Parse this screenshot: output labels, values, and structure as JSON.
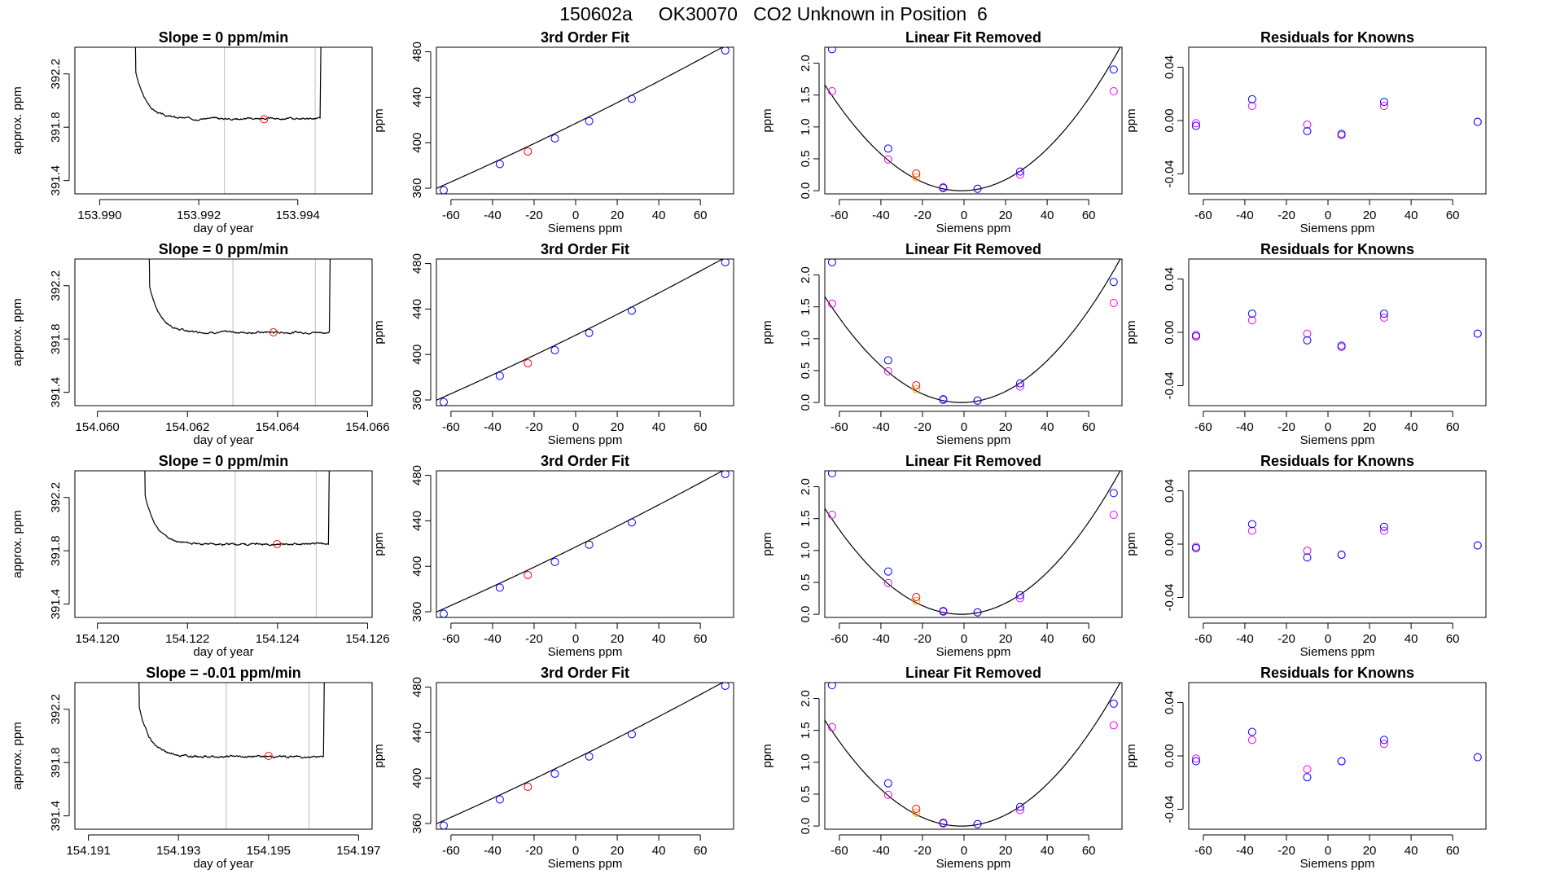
{
  "title": "150602a     OK30070   CO2 Unknown in Position  6",
  "colors": {
    "axis": "#000000",
    "trace": "#000000",
    "vline": "#bebebe",
    "marker": "#ff0000",
    "known": "#0000ff",
    "known_alt": "#ee00ee",
    "unknown_alt": "#ffa500",
    "curve": "#000000"
  },
  "chart_data": [
    {
      "type": "line",
      "title": "Slope =  0  ppm/min",
      "xlabel": "day of year",
      "ylabel": "approx. ppm",
      "xlim": [
        153.9895,
        153.9955
      ],
      "ylim": [
        391.3,
        392.4
      ],
      "xticks": [
        153.99,
        153.992,
        153.994
      ],
      "xtick_labels": [
        "153.990",
        "153.992",
        "153.994"
      ],
      "yticks": [
        391.4,
        391.8,
        392.2
      ],
      "ytick_labels": [
        "391.4",
        "391.8",
        "392.2"
      ],
      "vlines": [
        153.99252,
        153.99435
      ],
      "marker": {
        "x": 153.99332,
        "y": 391.86
      },
      "trace": {
        "start": 153.99072,
        "end": 153.99445,
        "plateau": 391.865,
        "top": 392.5,
        "amp": 0.36,
        "decay": 0.00022,
        "noise": 0.008,
        "seed": 3
      }
    },
    {
      "type": "line",
      "title": "Slope =  0  ppm/min",
      "xlabel": "day of year",
      "ylabel": "approx. ppm",
      "xlim": [
        154.0595,
        154.0661
      ],
      "ylim": [
        391.3,
        392.4
      ],
      "xticks": [
        154.06,
        154.062,
        154.064,
        154.066
      ],
      "xtick_labels": [
        "154.060",
        "154.062",
        "154.064",
        "154.066"
      ],
      "yticks": [
        391.4,
        391.8,
        392.2
      ],
      "ytick_labels": [
        "391.4",
        "391.8",
        "392.2"
      ],
      "vlines": [
        154.06301,
        154.06484
      ],
      "marker": {
        "x": 154.06391,
        "y": 391.85
      },
      "trace": {
        "start": 154.06115,
        "end": 154.06515,
        "plateau": 391.85,
        "top": 392.5,
        "amp": 0.36,
        "decay": 0.00024,
        "noise": 0.008,
        "seed": 7
      }
    },
    {
      "type": "line",
      "title": "Slope =  0  ppm/min",
      "xlabel": "day of year",
      "ylabel": "approx. ppm",
      "xlim": [
        154.1195,
        154.1261
      ],
      "ylim": [
        391.3,
        392.4
      ],
      "xticks": [
        154.12,
        154.122,
        154.124,
        154.126
      ],
      "xtick_labels": [
        "154.120",
        "154.122",
        "154.124",
        "154.126"
      ],
      "yticks": [
        391.4,
        391.8,
        392.2
      ],
      "ytick_labels": [
        "391.4",
        "391.8",
        "392.2"
      ],
      "vlines": [
        154.12306,
        154.12486
      ],
      "marker": {
        "x": 154.12399,
        "y": 391.85
      },
      "trace": {
        "start": 154.12105,
        "end": 154.12513,
        "plateau": 391.85,
        "top": 392.5,
        "amp": 0.38,
        "decay": 0.00025,
        "noise": 0.008,
        "seed": 11
      }
    },
    {
      "type": "line",
      "title": "Slope =  -0.01  ppm/min",
      "xlabel": "day of year",
      "ylabel": "approx. ppm",
      "xlim": [
        154.1907,
        154.1973
      ],
      "ylim": [
        391.3,
        392.4
      ],
      "xticks": [
        154.191,
        154.193,
        154.195,
        154.197
      ],
      "xtick_labels": [
        "154.191",
        "154.193",
        "154.195",
        "154.197"
      ],
      "yticks": [
        391.4,
        391.8,
        392.2
      ],
      "ytick_labels": [
        "391.4",
        "391.8",
        "392.2"
      ],
      "vlines": [
        154.19406,
        154.1959
      ],
      "marker": {
        "x": 154.195,
        "y": 391.85
      },
      "trace": {
        "start": 154.19212,
        "end": 154.19622,
        "plateau": 391.845,
        "top": 392.5,
        "amp": 0.38,
        "decay": 0.00025,
        "noise": 0.009,
        "seed": 19
      }
    },
    {
      "type": "scatter",
      "title": "3rd Order Fit",
      "xlabel": "Siemens ppm",
      "ylabel": "ppm",
      "xlim": [
        -67,
        76
      ],
      "ylim": [
        355,
        484
      ],
      "xticks": [
        -60,
        -40,
        -20,
        0,
        20,
        40,
        60
      ],
      "yticks": [
        360,
        400,
        440,
        480
      ],
      "knowns": {
        "x": [
          -63.5,
          -36.5,
          -10,
          6.5,
          27,
          72
        ],
        "y": [
          358.2,
          381.2,
          403.8,
          419.0,
          438.6,
          481.2
        ]
      },
      "unknown": {
        "x": [
          -23
        ],
        "y": [
          392.3
        ]
      },
      "fit": {
        "coef": [
          417.0,
          0.9,
          0.00069,
          0
        ]
      }
    },
    {
      "type": "scatter",
      "title": "3rd Order Fit",
      "xlabel": "Siemens ppm",
      "ylabel": "ppm",
      "xlim": [
        -67,
        76
      ],
      "ylim": [
        355,
        484
      ],
      "xticks": [
        -60,
        -40,
        -20,
        0,
        20,
        40,
        60
      ],
      "yticks": [
        360,
        400,
        440,
        480
      ],
      "knowns": {
        "x": [
          -63.5,
          -36.5,
          -10,
          6.5,
          27,
          72
        ],
        "y": [
          358.2,
          381.2,
          403.8,
          419.0,
          438.6,
          481.2
        ]
      },
      "unknown": {
        "x": [
          -23
        ],
        "y": [
          392.3
        ]
      },
      "fit": {
        "coef": [
          417.0,
          0.9,
          0.00069,
          0
        ]
      }
    },
    {
      "type": "scatter",
      "title": "3rd Order Fit",
      "xlabel": "Siemens ppm",
      "ylabel": "ppm",
      "xlim": [
        -67,
        76
      ],
      "ylim": [
        355,
        484
      ],
      "xticks": [
        -60,
        -40,
        -20,
        0,
        20,
        40,
        60
      ],
      "yticks": [
        360,
        400,
        440,
        480
      ],
      "knowns": {
        "x": [
          -63.5,
          -36.5,
          -10,
          6.5,
          27,
          72
        ],
        "y": [
          358.2,
          381.2,
          403.8,
          419.0,
          438.6,
          481.2
        ]
      },
      "unknown": {
        "x": [
          -23
        ],
        "y": [
          392.3
        ]
      },
      "fit": {
        "coef": [
          417.0,
          0.9,
          0.00069,
          0
        ]
      }
    },
    {
      "type": "scatter",
      "title": "3rd Order Fit",
      "xlabel": "Siemens ppm",
      "ylabel": "ppm",
      "xlim": [
        -67,
        76
      ],
      "ylim": [
        355,
        484
      ],
      "xticks": [
        -60,
        -40,
        -20,
        0,
        20,
        40,
        60
      ],
      "yticks": [
        360,
        400,
        440,
        480
      ],
      "knowns": {
        "x": [
          -63.5,
          -36.5,
          -10,
          6.5,
          27,
          72
        ],
        "y": [
          358.2,
          381.2,
          403.8,
          419.0,
          438.6,
          481.2
        ]
      },
      "unknown": {
        "x": [
          -23
        ],
        "y": [
          392.3
        ]
      },
      "fit": {
        "coef": [
          417.0,
          0.9,
          0.00069,
          0
        ]
      }
    },
    {
      "type": "scatter",
      "title": "Linear Fit Removed",
      "xlabel": "Siemens ppm",
      "ylabel": "ppm",
      "xlim": [
        -67,
        76
      ],
      "ylim": [
        -0.05,
        2.25
      ],
      "xticks": [
        -60,
        -40,
        -20,
        0,
        20,
        40,
        60
      ],
      "yticks": [
        0.0,
        0.5,
        1.0,
        1.5,
        2.0
      ],
      "ytick_labels": [
        "0.0",
        "0.5",
        "1.0",
        "1.5",
        "2.0"
      ],
      "knowns": {
        "x": [
          -63.5,
          -36.5,
          -10,
          6.5,
          27,
          72
        ],
        "y": [
          2.22,
          0.66,
          0.05,
          0.03,
          0.3,
          1.9
        ]
      },
      "knowns_alt": {
        "x": [
          -63.5,
          -36.5,
          -10,
          6.5,
          27,
          72
        ],
        "y": [
          1.56,
          0.49,
          0.04,
          0.03,
          0.25,
          1.56
        ]
      },
      "unknown": {
        "x": [
          -23
        ],
        "y": [
          0.27
        ]
      },
      "unknown_alt": {
        "x": [
          -23
        ],
        "y": [
          0.21
        ]
      },
      "fit": {
        "coef": [
          0.0,
          0.001,
          0.000385,
          0
        ]
      }
    },
    {
      "type": "scatter",
      "title": "Linear Fit Removed",
      "xlabel": "Siemens ppm",
      "ylabel": "ppm",
      "xlim": [
        -67,
        76
      ],
      "ylim": [
        -0.05,
        2.25
      ],
      "xticks": [
        -60,
        -40,
        -20,
        0,
        20,
        40,
        60
      ],
      "yticks": [
        0.0,
        0.5,
        1.0,
        1.5,
        2.0
      ],
      "ytick_labels": [
        "0.0",
        "0.5",
        "1.0",
        "1.5",
        "2.0"
      ],
      "knowns": {
        "x": [
          -63.5,
          -36.5,
          -10,
          6.5,
          27,
          72
        ],
        "y": [
          2.2,
          0.66,
          0.05,
          0.03,
          0.3,
          1.89
        ]
      },
      "knowns_alt": {
        "x": [
          -63.5,
          -36.5,
          -10,
          6.5,
          27,
          72
        ],
        "y": [
          1.55,
          0.49,
          0.04,
          0.03,
          0.25,
          1.56
        ]
      },
      "unknown": {
        "x": [
          -23
        ],
        "y": [
          0.27
        ]
      },
      "unknown_alt": {
        "x": [
          -23
        ],
        "y": [
          0.21
        ]
      },
      "fit": {
        "coef": [
          0.0,
          0.001,
          0.000385,
          0
        ]
      }
    },
    {
      "type": "scatter",
      "title": "Linear Fit Removed",
      "xlabel": "Siemens ppm",
      "ylabel": "ppm",
      "xlim": [
        -67,
        76
      ],
      "ylim": [
        -0.05,
        2.25
      ],
      "xticks": [
        -60,
        -40,
        -20,
        0,
        20,
        40,
        60
      ],
      "yticks": [
        0.0,
        0.5,
        1.0,
        1.5,
        2.0
      ],
      "ytick_labels": [
        "0.0",
        "0.5",
        "1.0",
        "1.5",
        "2.0"
      ],
      "knowns": {
        "x": [
          -63.5,
          -36.5,
          -10,
          6.5,
          27,
          72
        ],
        "y": [
          2.21,
          0.67,
          0.05,
          0.03,
          0.3,
          1.9
        ]
      },
      "knowns_alt": {
        "x": [
          -63.5,
          -36.5,
          -10,
          6.5,
          27,
          72
        ],
        "y": [
          1.56,
          0.49,
          0.04,
          0.03,
          0.25,
          1.56
        ]
      },
      "unknown": {
        "x": [
          -23
        ],
        "y": [
          0.27
        ]
      },
      "unknown_alt": {
        "x": [
          -23
        ],
        "y": [
          0.21
        ]
      },
      "fit": {
        "coef": [
          0.0,
          0.001,
          0.000385,
          0
        ]
      }
    },
    {
      "type": "scatter",
      "title": "Linear Fit Removed",
      "xlabel": "Siemens ppm",
      "ylabel": "ppm",
      "xlim": [
        -67,
        76
      ],
      "ylim": [
        -0.05,
        2.25
      ],
      "xticks": [
        -60,
        -40,
        -20,
        0,
        20,
        40,
        60
      ],
      "yticks": [
        0.0,
        0.5,
        1.0,
        1.5,
        2.0
      ],
      "ytick_labels": [
        "0.0",
        "0.5",
        "1.0",
        "1.5",
        "2.0"
      ],
      "knowns": {
        "x": [
          -63.5,
          -36.5,
          -10,
          6.5,
          27,
          72
        ],
        "y": [
          2.21,
          0.67,
          0.05,
          0.03,
          0.3,
          1.92
        ]
      },
      "knowns_alt": {
        "x": [
          -63.5,
          -36.5,
          -10,
          6.5,
          27,
          72
        ],
        "y": [
          1.55,
          0.49,
          0.04,
          0.03,
          0.25,
          1.58
        ]
      },
      "unknown": {
        "x": [
          -23
        ],
        "y": [
          0.27
        ]
      },
      "unknown_alt": {
        "x": [
          -23
        ],
        "y": [
          0.21
        ]
      },
      "fit": {
        "coef": [
          0.0,
          0.001,
          0.000385,
          0
        ]
      }
    },
    {
      "type": "scatter",
      "title": "Residuals for Knowns",
      "xlabel": "Siemens ppm",
      "ylabel": "ppm",
      "xlim": [
        -67,
        76
      ],
      "ylim": [
        -0.055,
        0.055
      ],
      "xticks": [
        -60,
        -40,
        -20,
        0,
        20,
        40,
        60
      ],
      "yticks": [
        -0.04,
        0.0,
        0.04
      ],
      "ytick_labels": [
        "-0.04",
        "0.00",
        "0.04"
      ],
      "knowns": {
        "x": [
          -63.5,
          -36.5,
          -10,
          6.5,
          27,
          72
        ],
        "y": [
          -0.004,
          0.016,
          -0.008,
          -0.01,
          0.014,
          -0.001
        ]
      },
      "knowns_alt": {
        "x": [
          -63.5,
          -36.5,
          -10,
          6.5,
          27,
          72
        ],
        "y": [
          -0.002,
          0.011,
          -0.003,
          -0.011,
          0.011,
          -0.001
        ]
      }
    },
    {
      "type": "scatter",
      "title": "Residuals for Knowns",
      "xlabel": "Siemens ppm",
      "ylabel": "ppm",
      "xlim": [
        -67,
        76
      ],
      "ylim": [
        -0.055,
        0.055
      ],
      "xticks": [
        -60,
        -40,
        -20,
        0,
        20,
        40,
        60
      ],
      "yticks": [
        -0.04,
        0.0,
        0.04
      ],
      "ytick_labels": [
        "-0.04",
        "0.00",
        "0.04"
      ],
      "knowns": {
        "x": [
          -63.5,
          -36.5,
          -10,
          6.5,
          27,
          72
        ],
        "y": [
          -0.003,
          0.014,
          -0.006,
          -0.01,
          0.014,
          -0.001
        ]
      },
      "knowns_alt": {
        "x": [
          -63.5,
          -36.5,
          -10,
          6.5,
          27,
          72
        ],
        "y": [
          -0.002,
          0.009,
          -0.001,
          -0.011,
          0.011,
          -0.001
        ]
      }
    },
    {
      "type": "scatter",
      "title": "Residuals for Knowns",
      "xlabel": "Siemens ppm",
      "ylabel": "ppm",
      "xlim": [
        -67,
        76
      ],
      "ylim": [
        -0.055,
        0.055
      ],
      "xticks": [
        -60,
        -40,
        -20,
        0,
        20,
        40,
        60
      ],
      "yticks": [
        -0.04,
        0.0,
        0.04
      ],
      "ytick_labels": [
        "-0.04",
        "0.00",
        "0.04"
      ],
      "knowns": {
        "x": [
          -63.5,
          -36.5,
          -10,
          6.5,
          27,
          72
        ],
        "y": [
          -0.003,
          0.015,
          -0.01,
          -0.008,
          0.013,
          -0.001
        ]
      },
      "knowns_alt": {
        "x": [
          -63.5,
          -36.5,
          -10,
          6.5,
          27,
          72
        ],
        "y": [
          -0.002,
          0.01,
          -0.005,
          -0.008,
          0.01,
          -0.001
        ]
      }
    },
    {
      "type": "scatter",
      "title": "Residuals for Knowns",
      "xlabel": "Siemens ppm",
      "ylabel": "ppm",
      "xlim": [
        -67,
        76
      ],
      "ylim": [
        -0.055,
        0.055
      ],
      "xticks": [
        -60,
        -40,
        -20,
        0,
        20,
        40,
        60
      ],
      "yticks": [
        -0.04,
        0.0,
        0.04
      ],
      "ytick_labels": [
        "-0.04",
        "0.00",
        "0.04"
      ],
      "knowns": {
        "x": [
          -63.5,
          -36.5,
          -10,
          6.5,
          27,
          72
        ],
        "y": [
          -0.004,
          0.018,
          -0.016,
          -0.004,
          0.012,
          -0.001
        ]
      },
      "knowns_alt": {
        "x": [
          -63.5,
          -36.5,
          -10,
          6.5,
          27,
          72
        ],
        "y": [
          -0.002,
          0.012,
          -0.01,
          -0.004,
          0.009,
          -0.001
        ]
      }
    }
  ]
}
